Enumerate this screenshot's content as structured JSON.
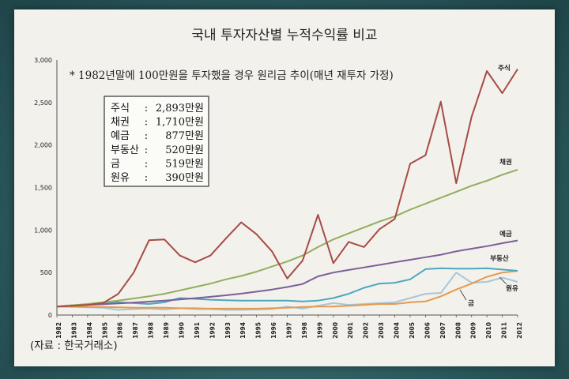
{
  "chart_data": {
    "type": "line",
    "title": "국내 투자자산별 누적수익률 비교",
    "note": "* 1982년말에 100만원을 투자했을 경우 원리금 추이(매년 재투자 가정)",
    "source": "(자료 : 한국거래소)",
    "x": [
      1982,
      1983,
      1984,
      1985,
      1986,
      1987,
      1988,
      1989,
      1990,
      1991,
      1992,
      1993,
      1994,
      1995,
      1996,
      1997,
      1998,
      1999,
      2000,
      2001,
      2002,
      2003,
      2004,
      2005,
      2006,
      2007,
      2008,
      2009,
      2010,
      2011,
      2012
    ],
    "ylim": [
      0,
      3000
    ],
    "yticks": [
      "0",
      "500",
      "1,000",
      "1,500",
      "2,000",
      "2,500",
      "3,000"
    ],
    "grid": false,
    "series": [
      {
        "name": "주식",
        "color": "#a84b45",
        "values": [
          100,
          110,
          120,
          140,
          250,
          500,
          880,
          890,
          700,
          620,
          700,
          900,
          1090,
          950,
          750,
          430,
          640,
          1180,
          610,
          860,
          800,
          1010,
          1130,
          1780,
          1880,
          2510,
          1550,
          2330,
          2870,
          2610,
          2893
        ]
      },
      {
        "name": "채권",
        "color": "#93ad5c",
        "values": [
          100,
          115,
          130,
          150,
          170,
          195,
          220,
          250,
          290,
          330,
          370,
          420,
          460,
          510,
          570,
          630,
          700,
          800,
          890,
          960,
          1030,
          1100,
          1160,
          1240,
          1310,
          1380,
          1450,
          1520,
          1580,
          1650,
          1710
        ]
      },
      {
        "name": "예금",
        "color": "#7d5f97",
        "values": [
          100,
          110,
          118,
          127,
          137,
          147,
          158,
          170,
          184,
          199,
          215,
          232,
          252,
          275,
          300,
          330,
          365,
          455,
          500,
          530,
          560,
          590,
          620,
          650,
          680,
          710,
          750,
          780,
          810,
          845,
          877
        ]
      },
      {
        "name": "부동산",
        "color": "#4ea7bf",
        "values": [
          100,
          115,
          125,
          135,
          150,
          140,
          130,
          150,
          200,
          190,
          180,
          175,
          170,
          170,
          170,
          170,
          160,
          170,
          200,
          250,
          320,
          370,
          380,
          420,
          540,
          550,
          545,
          545,
          550,
          535,
          520
        ]
      },
      {
        "name": "금",
        "color": "#e69a4c",
        "values": [
          100,
          100,
          95,
          95,
          90,
          85,
          85,
          85,
          80,
          80,
          75,
          75,
          75,
          75,
          80,
          85,
          95,
          100,
          100,
          110,
          120,
          130,
          130,
          150,
          160,
          220,
          300,
          370,
          450,
          500,
          519
        ]
      },
      {
        "name": "원유",
        "color": "#a9c6d8",
        "values": [
          100,
          95,
          90,
          85,
          60,
          70,
          75,
          65,
          80,
          70,
          70,
          60,
          60,
          65,
          70,
          100,
          75,
          110,
          140,
          120,
          130,
          140,
          150,
          200,
          250,
          260,
          500,
          380,
          390,
          440,
          390
        ]
      }
    ],
    "summary": [
      {
        "label": "주식",
        "sep": ":",
        "value": "2,893만원"
      },
      {
        "label": "채권",
        "sep": ":",
        "value": "1,710만원"
      },
      {
        "label": "예금",
        "sep": ":",
        "value": "877만원"
      },
      {
        "label": "부동산",
        "sep": ":",
        "value": "520만원"
      },
      {
        "label": "금",
        "sep": ":",
        "value": "519만원"
      },
      {
        "label": "원유",
        "sep": ":",
        "value": "390만원"
      }
    ]
  }
}
